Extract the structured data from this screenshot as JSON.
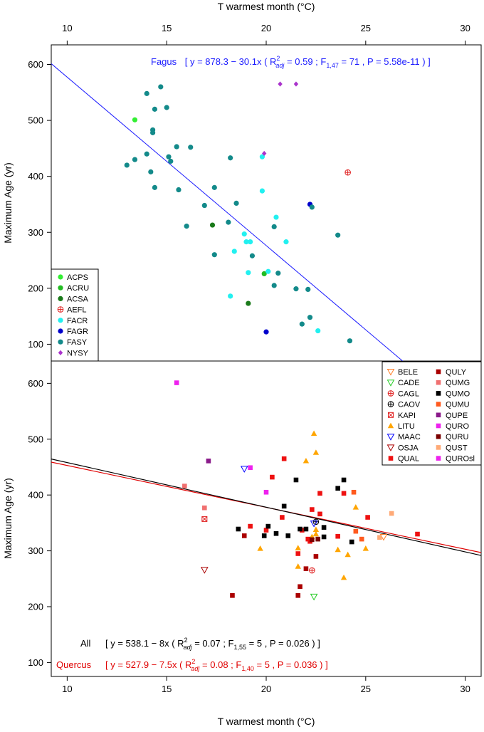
{
  "colors": {
    "fagus_line": "#1a1aff",
    "all_line": "#000000",
    "quercus_line": "#e00000",
    "frame": "#000000"
  },
  "chart_data": [
    {
      "type": "scatter",
      "panel": "top",
      "xlabel_top": "T warmest month (°C)",
      "ylabel": "Maximum Age (yr)",
      "xlim": [
        9.2,
        30.8
      ],
      "ylim": [
        70,
        635
      ],
      "xticks": [
        10,
        15,
        20,
        25,
        30
      ],
      "yticks": [
        100,
        200,
        300,
        400,
        500,
        600
      ],
      "legend_position": "bottom-left",
      "regression": {
        "label": "Fagus",
        "intercept": 878.3,
        "slope": -30.1,
        "eq_pre": "[ y = 878.3 − 30.1x ( R",
        "r2_sup": "2",
        "r2_sub": "adj",
        "r2_val": " = 0.59 ; F",
        "f_sub": "1,47",
        "f_val": " = 71 , P = 5.58e-11 ) ]",
        "color": "#1a1aff"
      },
      "series": [
        {
          "name": "ACPS",
          "marker": "circle",
          "color": "#33ee33",
          "points": [
            [
              13.4,
              501
            ]
          ]
        },
        {
          "name": "ACRU",
          "marker": "circle",
          "color": "#22bb22",
          "points": [
            [
              19.9,
              226
            ]
          ]
        },
        {
          "name": "ACSA",
          "marker": "circle",
          "color": "#1a7a1a",
          "points": [
            [
              17.3,
              313
            ],
            [
              19.1,
              173
            ]
          ]
        },
        {
          "name": "AEFL",
          "marker": "circle-plus",
          "color": "#e02020",
          "points": [
            [
              24.1,
              407
            ]
          ]
        },
        {
          "name": "FACR",
          "marker": "circle",
          "color": "#22f0f0",
          "points": [
            [
              19.8,
              435
            ],
            [
              19.8,
              374
            ],
            [
              20.5,
              327
            ],
            [
              18.9,
              297
            ],
            [
              19.0,
              283
            ],
            [
              19.2,
              283
            ],
            [
              21.0,
              283
            ],
            [
              18.4,
              266
            ],
            [
              19.1,
              228
            ],
            [
              20.1,
              230
            ],
            [
              18.2,
              186
            ],
            [
              22.6,
              124
            ]
          ]
        },
        {
          "name": "FAGR",
          "marker": "circle",
          "color": "#0000cc",
          "points": [
            [
              22.2,
              350
            ],
            [
              20.0,
              122
            ]
          ]
        },
        {
          "name": "FASY",
          "marker": "circle",
          "color": "#138a8a",
          "points": [
            [
              14.0,
              548
            ],
            [
              14.7,
              560
            ],
            [
              14.4,
              520
            ],
            [
              15.0,
              523
            ],
            [
              14.3,
              483
            ],
            [
              14.3,
              478
            ],
            [
              13.0,
              420
            ],
            [
              13.4,
              430
            ],
            [
              14.0,
              440
            ],
            [
              15.1,
              435
            ],
            [
              15.5,
              453
            ],
            [
              16.2,
              452
            ],
            [
              14.4,
              380
            ],
            [
              14.2,
              408
            ],
            [
              15.6,
              376
            ],
            [
              15.2,
              427
            ],
            [
              17.4,
              380
            ],
            [
              18.2,
              433
            ],
            [
              16.9,
              348
            ],
            [
              18.5,
              352
            ],
            [
              22.3,
              345
            ],
            [
              16.0,
              311
            ],
            [
              18.1,
              318
            ],
            [
              20.4,
              310
            ],
            [
              19.3,
              258
            ],
            [
              17.4,
              260
            ],
            [
              20.6,
              227
            ],
            [
              21.5,
              199
            ],
            [
              22.1,
              198
            ],
            [
              20.4,
              205
            ],
            [
              22.2,
              148
            ],
            [
              21.8,
              136
            ],
            [
              23.6,
              295
            ],
            [
              24.2,
              106
            ]
          ]
        },
        {
          "name": "NYSY",
          "marker": "diamond",
          "color": "#aa33cc",
          "points": [
            [
              20.7,
              565
            ],
            [
              21.5,
              565
            ],
            [
              19.9,
              441
            ]
          ]
        }
      ]
    },
    {
      "type": "scatter",
      "panel": "bottom",
      "xlabel": "T warmest month (°C)",
      "ylabel": "Maximum Age (yr)",
      "xlim": [
        9.2,
        30.8
      ],
      "ylim": [
        75,
        640
      ],
      "xticks": [
        10,
        15,
        20,
        25,
        30
      ],
      "yticks": [
        100,
        200,
        300,
        400,
        500,
        600
      ],
      "legend_position": "top-right",
      "regressions": [
        {
          "label": "All",
          "intercept": 538.1,
          "slope": -8,
          "color": "#000000",
          "eq_pre": "[ y = 538.1 − 8x ( R",
          "r2_sup": "2",
          "r2_sub": "adj",
          "r2_val": " = 0.07 ; F",
          "f_sub": "1,55",
          "f_val": " = 5 , P = 0.026 ) ]"
        },
        {
          "label": "Quercus",
          "intercept": 527.9,
          "slope": -7.5,
          "color": "#e00000",
          "eq_pre": "[ y = 527.9 − 7.5x ( R",
          "r2_sup": "2",
          "r2_sub": "adj",
          "r2_val": " = 0.08 ; F",
          "f_sub": "1,40",
          "f_val": " = 5 , P = 0.036 ) ]"
        }
      ],
      "series": [
        {
          "name": "BELE",
          "marker": "triangle-down-open",
          "color": "#ff7f27",
          "points": [
            [
              25.9,
              325
            ]
          ]
        },
        {
          "name": "CADE",
          "marker": "triangle-down-open",
          "color": "#22cc22",
          "points": [
            [
              22.4,
              218
            ]
          ]
        },
        {
          "name": "CAGL",
          "marker": "circle-plus",
          "color": "#e02020",
          "points": [
            [
              22.3,
              265
            ]
          ]
        },
        {
          "name": "CAOV",
          "marker": "circle-plus",
          "color": "#000000",
          "points": [
            [
              22.5,
              352
            ]
          ]
        },
        {
          "name": "KAPI",
          "marker": "square-x",
          "color": "#e02020",
          "points": [
            [
              16.9,
              357
            ]
          ]
        },
        {
          "name": "LITU",
          "marker": "triangle",
          "color": "#ffa500",
          "points": [
            [
              22.4,
              510
            ],
            [
              22.5,
              476
            ],
            [
              22.0,
              461
            ],
            [
              19.7,
              304
            ],
            [
              21.6,
              305
            ],
            [
              22.3,
              325
            ],
            [
              22.5,
              338
            ],
            [
              23.6,
              302
            ],
            [
              24.1,
              293
            ],
            [
              25.0,
              304
            ],
            [
              24.5,
              378
            ],
            [
              21.6,
              272
            ],
            [
              23.9,
              252
            ],
            [
              22.5,
              330
            ]
          ]
        },
        {
          "name": "MAAC",
          "marker": "triangle-down-open",
          "color": "#0000ff",
          "points": [
            [
              18.9,
              447
            ],
            [
              22.4,
              349
            ]
          ]
        },
        {
          "name": "OSJA",
          "marker": "triangle-down-open",
          "color": "#aa0000",
          "points": [
            [
              16.9,
              266
            ]
          ]
        },
        {
          "name": "QUAL",
          "marker": "square",
          "color": "#ee1111",
          "points": [
            [
              20.3,
              432
            ],
            [
              20.9,
              465
            ],
            [
              22.3,
              374
            ],
            [
              22.7,
              403
            ],
            [
              22.7,
              366
            ],
            [
              23.9,
              403
            ],
            [
              25.1,
              360
            ],
            [
              20.8,
              360
            ],
            [
              19.2,
              344
            ],
            [
              20.0,
              337
            ],
            [
              21.6,
              295
            ],
            [
              21.8,
              337
            ],
            [
              23.6,
              326
            ],
            [
              22.2,
              317
            ],
            [
              27.6,
              330
            ],
            [
              22.1,
              321
            ]
          ]
        },
        {
          "name": "QULY",
          "marker": "square",
          "color": "#aa0000",
          "points": [
            [
              18.3,
              220
            ],
            [
              21.6,
              220
            ],
            [
              21.7,
              236
            ],
            [
              22.5,
              290
            ],
            [
              22.0,
              268
            ],
            [
              18.9,
              327
            ]
          ]
        },
        {
          "name": "QUMG",
          "marker": "square",
          "color": "#f07070",
          "points": [
            [
              16.9,
              377
            ],
            [
              15.9,
              416
            ]
          ]
        },
        {
          "name": "QUMO",
          "marker": "square",
          "color": "#000000",
          "points": [
            [
              21.5,
              427
            ],
            [
              23.6,
              412
            ],
            [
              23.9,
              427
            ],
            [
              18.6,
              339
            ],
            [
              20.9,
              380
            ],
            [
              20.1,
              344
            ],
            [
              19.9,
              327
            ],
            [
              20.5,
              331
            ],
            [
              21.1,
              327
            ],
            [
              21.7,
              339
            ],
            [
              22.0,
              339
            ],
            [
              22.9,
              342
            ],
            [
              22.9,
              325
            ],
            [
              24.3,
              316
            ]
          ]
        },
        {
          "name": "QUMU",
          "marker": "square",
          "color": "#ff5a1f",
          "points": [
            [
              24.4,
              405
            ],
            [
              24.5,
              335
            ],
            [
              24.8,
              321
            ]
          ]
        },
        {
          "name": "QUPE",
          "marker": "square",
          "color": "#8a1a8a",
          "points": [
            [
              17.1,
              461
            ]
          ]
        },
        {
          "name": "QURO",
          "marker": "square",
          "color": "#ee22ee",
          "points": [
            [
              15.5,
              601
            ],
            [
              19.2,
              449
            ],
            [
              20.0,
              405
            ]
          ]
        },
        {
          "name": "QURU",
          "marker": "square",
          "color": "#7a0000",
          "points": [
            [
              22.3,
              320
            ],
            [
              22.6,
              321
            ]
          ]
        },
        {
          "name": "QUST",
          "marker": "square",
          "color": "#ffaa77",
          "points": [
            [
              26.3,
              367
            ],
            [
              25.7,
              324
            ]
          ]
        },
        {
          "name": "QUROsl",
          "marker": "square",
          "color": "#ee22ee",
          "points": []
        }
      ]
    }
  ]
}
